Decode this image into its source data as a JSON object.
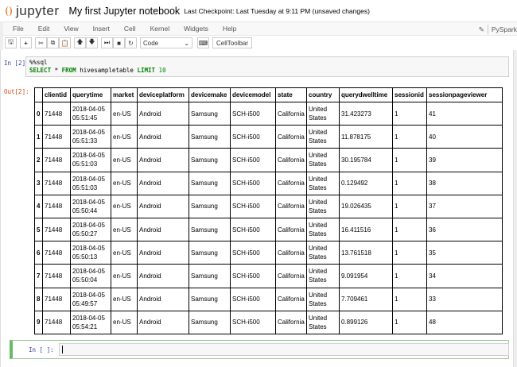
{
  "header": {
    "logo": "jupyter",
    "title": "My first Jupyter notebook",
    "checkpoint": "Last Checkpoint: Last Tuesday at 9:11 PM (unsaved changes)"
  },
  "menu": [
    "File",
    "Edit",
    "View",
    "Insert",
    "Cell",
    "Kernel",
    "Widgets",
    "Help"
  ],
  "kernel": "PySpark",
  "toolbar": {
    "cell_type": "Code",
    "celltoolbar": "CellToolbar"
  },
  "cell1": {
    "prompt": "In [2]:",
    "line1": "%%sql",
    "kw1": "SELECT",
    "mid1": " * ",
    "kw2": "FROM",
    "mid2": " hivesampletable ",
    "kw3": "LIMIT",
    "num": " 10"
  },
  "output": {
    "prompt": "Out[2]:",
    "columns": [
      "",
      "clientid",
      "querytime",
      "market",
      "deviceplatform",
      "devicemake",
      "devicemodel",
      "state",
      "country",
      "querydwelltime",
      "sessionid",
      "sessionpageviewer"
    ],
    "rows": [
      [
        "0",
        "71448",
        "2018-04-05 05:51:45",
        "en-US",
        "Android",
        "Samsung",
        "SCH-i500",
        "California",
        "United States",
        "31.423273",
        "1",
        "41"
      ],
      [
        "1",
        "71448",
        "2018-04-05 05:51:33",
        "en-US",
        "Android",
        "Samsung",
        "SCH-i500",
        "California",
        "United States",
        "11.878175",
        "1",
        "40"
      ],
      [
        "2",
        "71448",
        "2018-04-05 05:51:03",
        "en-US",
        "Android",
        "Samsung",
        "SCH-i500",
        "California",
        "United States",
        "30.195784",
        "1",
        "39"
      ],
      [
        "3",
        "71448",
        "2018-04-05 05:51:03",
        "en-US",
        "Android",
        "Samsung",
        "SCH-i500",
        "California",
        "United States",
        "0.129492",
        "1",
        "38"
      ],
      [
        "4",
        "71448",
        "2018-04-05 05:50:44",
        "en-US",
        "Android",
        "Samsung",
        "SCH-i500",
        "California",
        "United States",
        "19.026435",
        "1",
        "37"
      ],
      [
        "5",
        "71448",
        "2018-04-05 05:50:27",
        "en-US",
        "Android",
        "Samsung",
        "SCH-i500",
        "California",
        "United States",
        "16.411516",
        "1",
        "36"
      ],
      [
        "6",
        "71448",
        "2018-04-05 05:50:13",
        "en-US",
        "Android",
        "Samsung",
        "SCH-i500",
        "California",
        "United States",
        "13.761518",
        "1",
        "35"
      ],
      [
        "7",
        "71448",
        "2018-04-05 05:50:04",
        "en-US",
        "Android",
        "Samsung",
        "SCH-i500",
        "California",
        "United States",
        "9.091954",
        "1",
        "34"
      ],
      [
        "8",
        "71448",
        "2018-04-05 05:49:57",
        "en-US",
        "Android",
        "Samsung",
        "SCH-i500",
        "California",
        "United States",
        "7.709461",
        "1",
        "33"
      ],
      [
        "9",
        "71448",
        "2018-04-05 05:54:21",
        "en-US",
        "Android",
        "Samsung",
        "SCH-i500",
        "California",
        "United States",
        "0.899126",
        "1",
        "48"
      ]
    ]
  },
  "cell2": {
    "prompt": "In [ ]:",
    "value": ""
  }
}
